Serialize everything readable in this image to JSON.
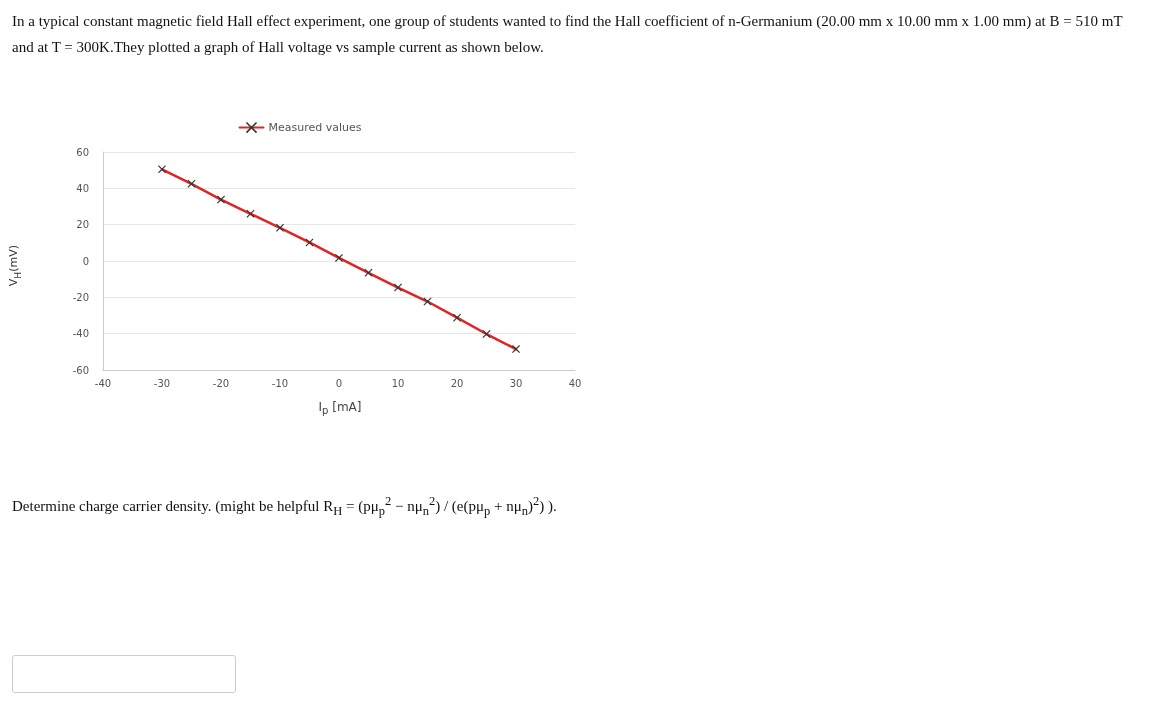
{
  "chart_data": {
    "type": "line",
    "title": "In a typical constant magnetic field Hall effect experiment, one group of students wanted to find the Hall coefficient of n-Germanium (20.00 mm x 10.00 mm x 1.00 mm) at B = 510 mT and at T = 300K.They plotted a graph of Hall voltage vs sample current as shown below.",
    "xlabel": "I$_{p}$ [mA]",
    "ylabel": "V$_{H}$(mV)",
    "x": [
      -30,
      -25,
      -20,
      -15,
      -10,
      -5,
      0,
      5,
      10,
      15,
      20,
      25,
      30
    ],
    "series": [
      {
        "name": "Measured values",
        "color": "#e02424",
        "values": [
          50.5,
          42.5,
          33.8,
          26,
          18.3,
          10.2,
          1.7,
          -6.5,
          -14.6,
          -22.3,
          -31.2,
          -40.2,
          -48.5
        ]
      }
    ],
    "xlim": [
      -40,
      40
    ],
    "xticks": [
      -40,
      -30,
      -20,
      -10,
      0,
      10,
      20,
      30,
      40
    ],
    "ylim": [
      -60,
      60
    ],
    "yticks": [
      -60,
      -40,
      -20,
      0,
      20,
      40,
      60
    ],
    "grid": "y",
    "legend": "top",
    "marker": "cross",
    "line_style": "solid",
    "annotations": [
      "Determine charge carrier density. (might be helpful R$_{H}$ = (pμ$_{p}$$^{2}$ − nμ$_{n}$$^{2}$) / (e(pμ$_{p}$ + nμ$_{n}$)$^{2}$) )."
    ]
  }
}
